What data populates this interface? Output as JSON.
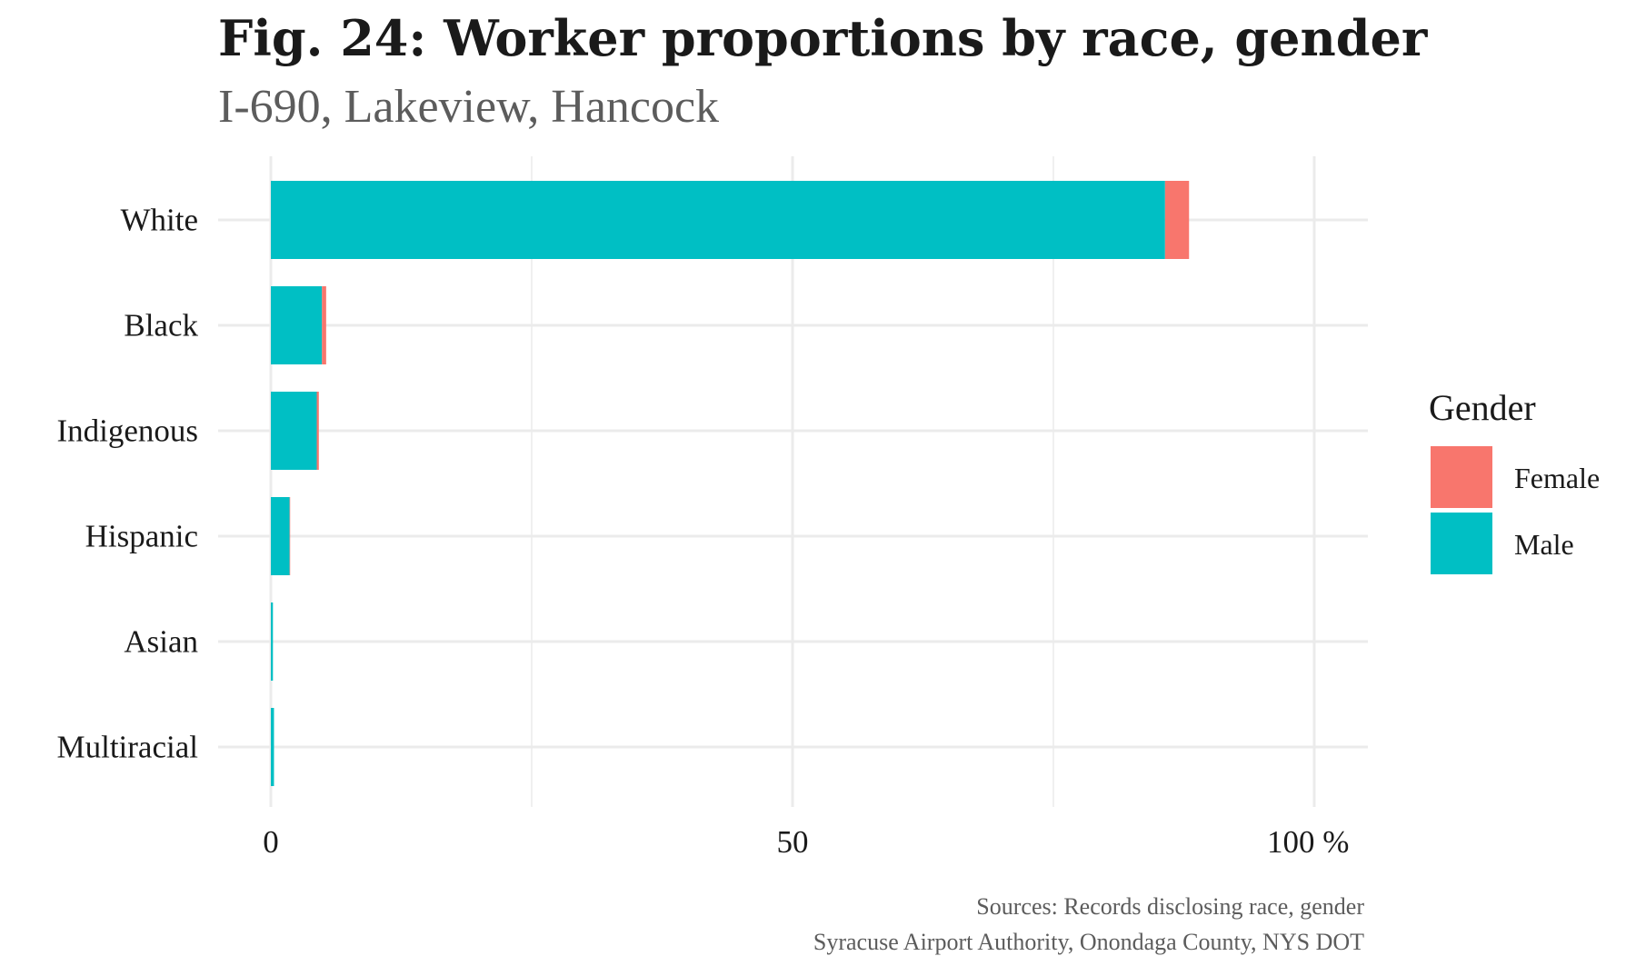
{
  "chart_data": {
    "type": "bar",
    "orientation": "horizontal",
    "stacked": true,
    "title": "Fig. 24: Worker proportions by race, gender",
    "subtitle": "I-690, Lakeview, Hancock",
    "caption": [
      "Sources: Records disclosing race, gender",
      "Syracuse Airport Authority, Onondaga County, NYS DOT"
    ],
    "categories": [
      "White",
      "Black",
      "Indigenous",
      "Hispanic",
      "Asian",
      "Multiracial"
    ],
    "series": [
      {
        "name": "Male",
        "color": "#00BFC4",
        "values": [
          85.7,
          4.9,
          4.4,
          1.8,
          0.2,
          0.3
        ]
      },
      {
        "name": "Female",
        "color": "#F8766D",
        "values": [
          2.3,
          0.4,
          0.2,
          0.05,
          0.0,
          0.0
        ]
      }
    ],
    "xlim": [
      0,
      100
    ],
    "x_ticks": [
      "0",
      "50",
      "100 %"
    ],
    "xlabel": "",
    "ylabel": "",
    "grid": true,
    "legend": {
      "title": "Gender",
      "position": "right",
      "entries": [
        {
          "label": "Female",
          "color": "#F8766D"
        },
        {
          "label": "Male",
          "color": "#00BFC4"
        }
      ]
    }
  }
}
